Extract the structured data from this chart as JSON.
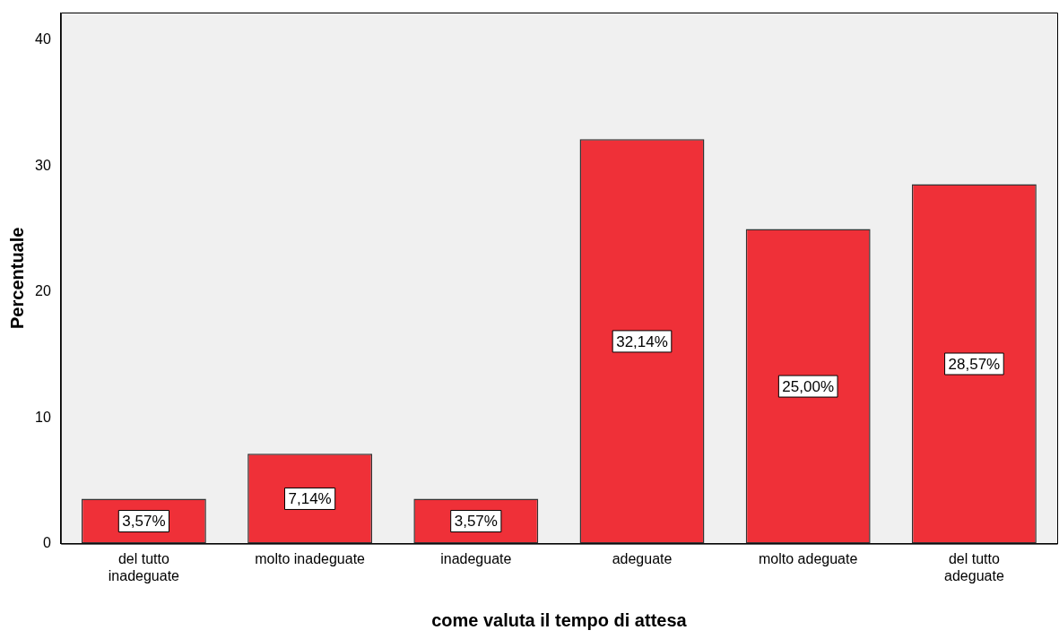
{
  "chart_data": {
    "type": "bar",
    "xlabel": "come valuta il tempo di attesa",
    "ylabel": "Percentuale",
    "categories": [
      "del tutto inadeguate",
      "molto inadeguate",
      "inadeguate",
      "adeguate",
      "molto adeguate",
      "del tutto adeguate"
    ],
    "values": [
      3.57,
      7.14,
      3.57,
      32.14,
      25.0,
      28.57
    ],
    "value_labels": [
      "3,57%",
      "7,14%",
      "3,57%",
      "32,14%",
      "25,00%",
      "28,57%"
    ],
    "color": "#ef3038",
    "ylim": [
      0,
      42.2
    ],
    "yticks": [
      0,
      10,
      20,
      30,
      40
    ],
    "grid": false,
    "legend": false
  }
}
